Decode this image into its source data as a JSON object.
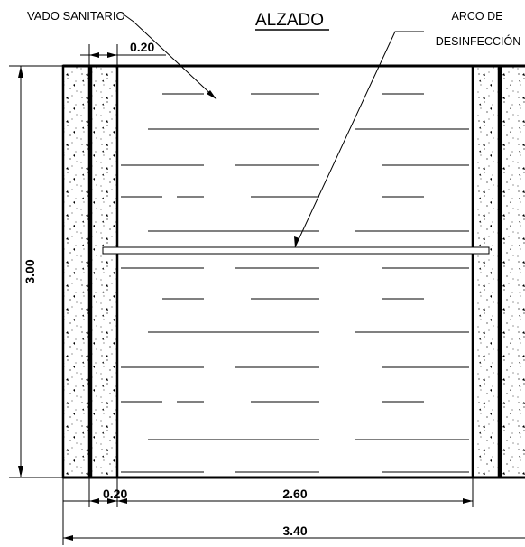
{
  "title": "ALZADO",
  "labels": {
    "vado": "VADO SANITARIO",
    "arco_line1": "ARCO DE",
    "arco_line2": "DESINFECCIÓN"
  },
  "dimensions": {
    "wall_top": "0.20",
    "wall_bottom": "0.20",
    "inner_width": "2.60",
    "total_width": "3.40",
    "height": "3.00"
  }
}
